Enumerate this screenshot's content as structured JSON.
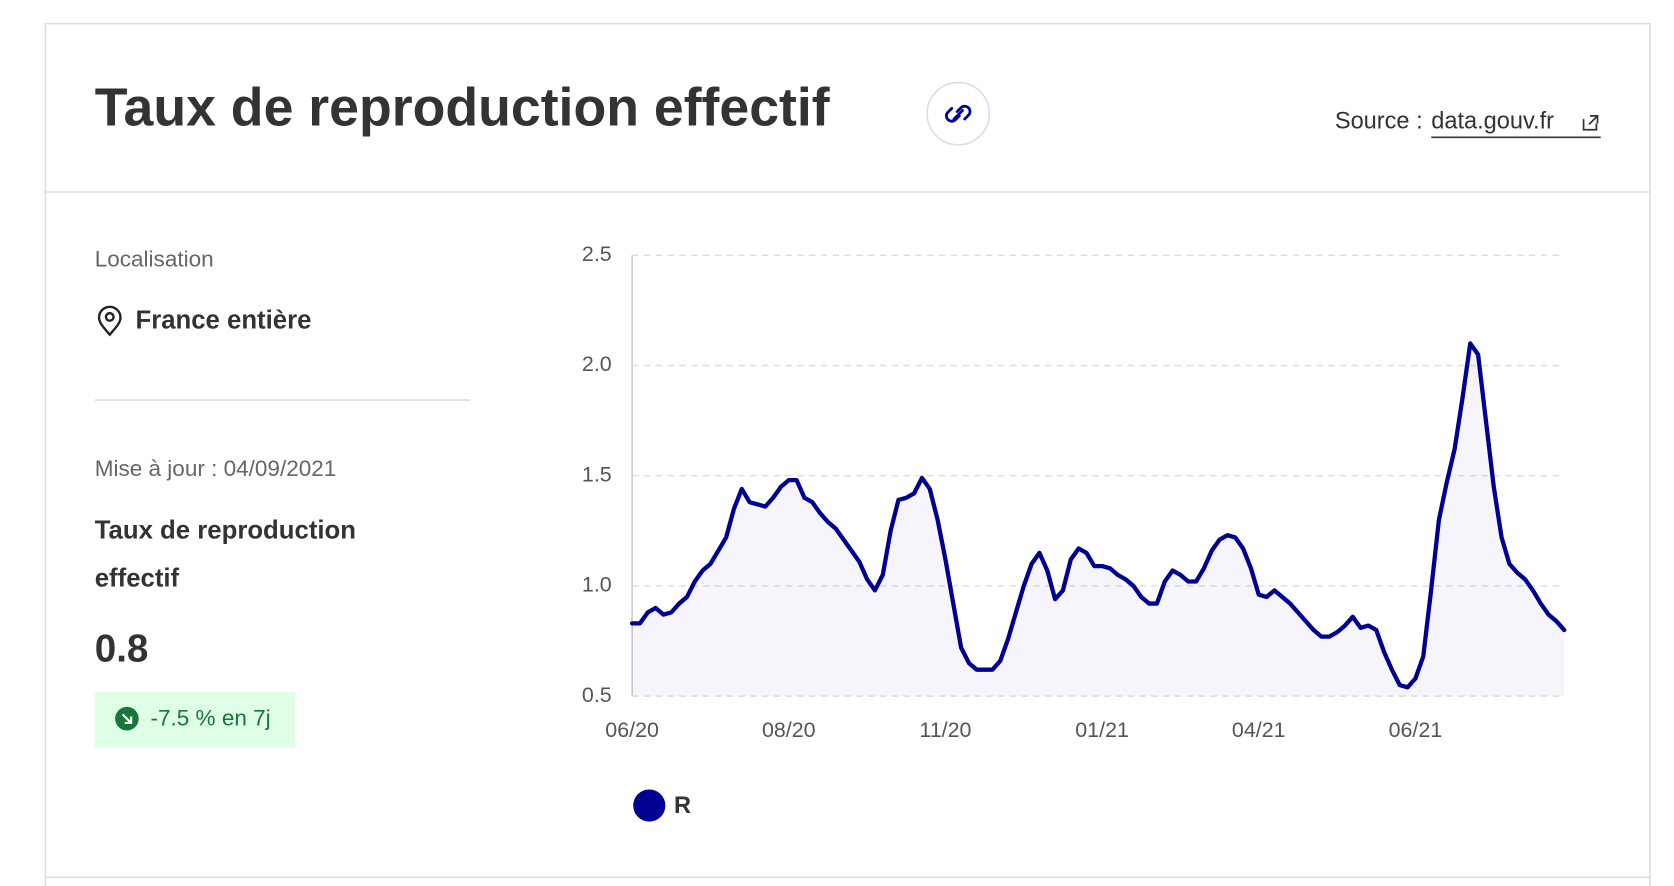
{
  "header": {
    "title": "Taux de reproduction effectif",
    "source_label": "Source :",
    "source_link": "data.gouv.fr"
  },
  "sidebar": {
    "location_label": "Localisation",
    "location": "France entière",
    "update": "Mise à jour : 04/09/2021",
    "indicator": "Taux de reproduction effectif",
    "value": 0.8,
    "change": "-7.5 % en 7j"
  },
  "chart_data": {
    "type": "line",
    "categories": [
      "06/20",
      null,
      null,
      null,
      null,
      null,
      null,
      null,
      null,
      null,
      null,
      null,
      null,
      null,
      null,
      null,
      null,
      null,
      null,
      null,
      "08/20",
      null,
      null,
      null,
      null,
      null,
      null,
      null,
      null,
      null,
      null,
      null,
      null,
      null,
      null,
      null,
      null,
      null,
      null,
      null,
      "11/20",
      null,
      null,
      null,
      null,
      null,
      null,
      null,
      null,
      null,
      null,
      null,
      null,
      null,
      null,
      null,
      null,
      null,
      null,
      null,
      "01/21",
      null,
      null,
      null,
      null,
      null,
      null,
      null,
      null,
      null,
      null,
      null,
      null,
      null,
      null,
      null,
      null,
      null,
      null,
      null,
      "04/21",
      null,
      null,
      null,
      null,
      null,
      null,
      null,
      null,
      null,
      null,
      null,
      null,
      null,
      null,
      null,
      null,
      null,
      null,
      null,
      "06/21",
      null,
      null,
      null,
      null,
      null,
      null,
      null,
      null,
      null,
      null,
      null,
      null,
      null,
      null,
      null,
      null,
      null,
      null,
      null
    ],
    "series": [
      {
        "name": "R",
        "color": "#000091",
        "values": [
          0.83,
          0.83,
          0.88,
          0.9,
          0.87,
          0.88,
          0.92,
          0.95,
          1.02,
          1.07,
          1.1,
          1.16,
          1.22,
          1.35,
          1.44,
          1.38,
          1.37,
          1.36,
          1.4,
          1.45,
          1.48,
          1.48,
          1.4,
          1.38,
          1.33,
          1.29,
          1.26,
          1.21,
          1.16,
          1.11,
          1.03,
          0.98,
          1.05,
          1.25,
          1.39,
          1.4,
          1.42,
          1.49,
          1.44,
          1.3,
          1.12,
          0.92,
          0.72,
          0.65,
          0.62,
          0.62,
          0.62,
          0.66,
          0.76,
          0.88,
          1.0,
          1.1,
          1.15,
          1.07,
          0.94,
          0.98,
          1.12,
          1.17,
          1.15,
          1.09,
          1.09,
          1.08,
          1.05,
          1.03,
          1.0,
          0.95,
          0.92,
          0.92,
          1.02,
          1.07,
          1.05,
          1.02,
          1.02,
          1.08,
          1.16,
          1.21,
          1.23,
          1.22,
          1.17,
          1.08,
          0.96,
          0.95,
          0.98,
          0.95,
          0.92,
          0.88,
          0.84,
          0.8,
          0.77,
          0.77,
          0.79,
          0.82,
          0.86,
          0.81,
          0.82,
          0.8,
          0.7,
          0.62,
          0.55,
          0.54,
          0.58,
          0.68,
          0.98,
          1.3,
          1.47,
          1.62,
          1.85,
          2.1,
          2.05,
          1.75,
          1.45,
          1.22,
          1.1,
          1.06,
          1.03,
          0.98,
          0.92,
          0.87,
          0.84,
          0.8
        ]
      }
    ],
    "ylim": [
      0.5,
      2.5
    ],
    "yticks": [
      0.5,
      {
        "value": 1,
        "label": "1.0"
      },
      1.5,
      {
        "value": 2,
        "label": "2.0"
      },
      2.5
    ],
    "grid": true
  }
}
